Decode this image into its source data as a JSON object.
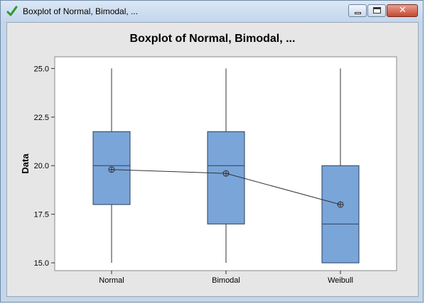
{
  "window": {
    "title": "Boxplot of Normal, Bimodal, ...",
    "close_glyph": "✕"
  },
  "chart_data": {
    "type": "boxplot",
    "title": "Boxplot of Normal, Bimodal, ...",
    "ylabel": "Data",
    "xlabel": "",
    "ylim": [
      14.6,
      25.6
    ],
    "yticks": [
      "15.0",
      "17.5",
      "20.0",
      "22.5",
      "25.0"
    ],
    "categories": [
      "Normal",
      "Bimodal",
      "Weibull"
    ],
    "boxes": [
      {
        "name": "Normal",
        "min": 15.0,
        "q1": 18.0,
        "median": 20.0,
        "q3": 21.75,
        "max": 25.0,
        "mean": 19.8
      },
      {
        "name": "Bimodal",
        "min": 15.0,
        "q1": 17.0,
        "median": 20.0,
        "q3": 21.75,
        "max": 25.0,
        "mean": 19.6
      },
      {
        "name": "Weibull",
        "min": 15.0,
        "q1": 15.0,
        "median": 17.0,
        "q3": 20.0,
        "max": 25.0,
        "mean": 18.0
      }
    ],
    "mean_connect_line": true,
    "colors": {
      "box_fill": "#7aa5d8",
      "box_stroke": "#2a3f5f",
      "plot_bg": "#ffffff",
      "frame_bg": "#e6e6e6"
    }
  }
}
